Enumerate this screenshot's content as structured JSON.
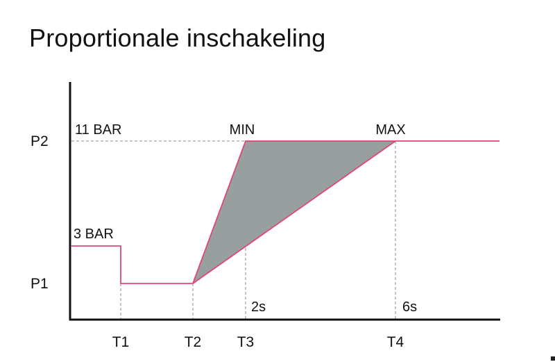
{
  "title": "Proportionale inschakeling",
  "chart_data": {
    "type": "line",
    "title": "Proportionale inschakeling",
    "x_ticks": [
      "T1",
      "T2",
      "T3",
      "T4"
    ],
    "y_ticks": [
      "P1",
      "P2"
    ],
    "annotations": {
      "p2_value": "11 BAR",
      "start_value": "3 BAR",
      "min_label": "MIN",
      "max_label": "MAX",
      "t3_time": "2s",
      "t4_time": "6s"
    },
    "pressure_bar": {
      "start": 3,
      "P2": 11
    },
    "time_s_after_T2": {
      "T3": 2,
      "T4": 6
    },
    "series": [
      {
        "name": "MIN",
        "description_points": [
          [
            "start",
            "3 BAR"
          ],
          [
            "T1",
            "P1"
          ],
          [
            "T2",
            "P1"
          ],
          [
            "T3",
            "P2"
          ],
          [
            "end",
            "P2"
          ]
        ]
      },
      {
        "name": "MAX",
        "description_points": [
          [
            "T2",
            "P1"
          ],
          [
            "T4",
            "P2"
          ]
        ]
      }
    ],
    "colors": {
      "line": "#e0457b",
      "fill": "#97a09f",
      "axis": "#111111",
      "guide": "#888888"
    }
  }
}
